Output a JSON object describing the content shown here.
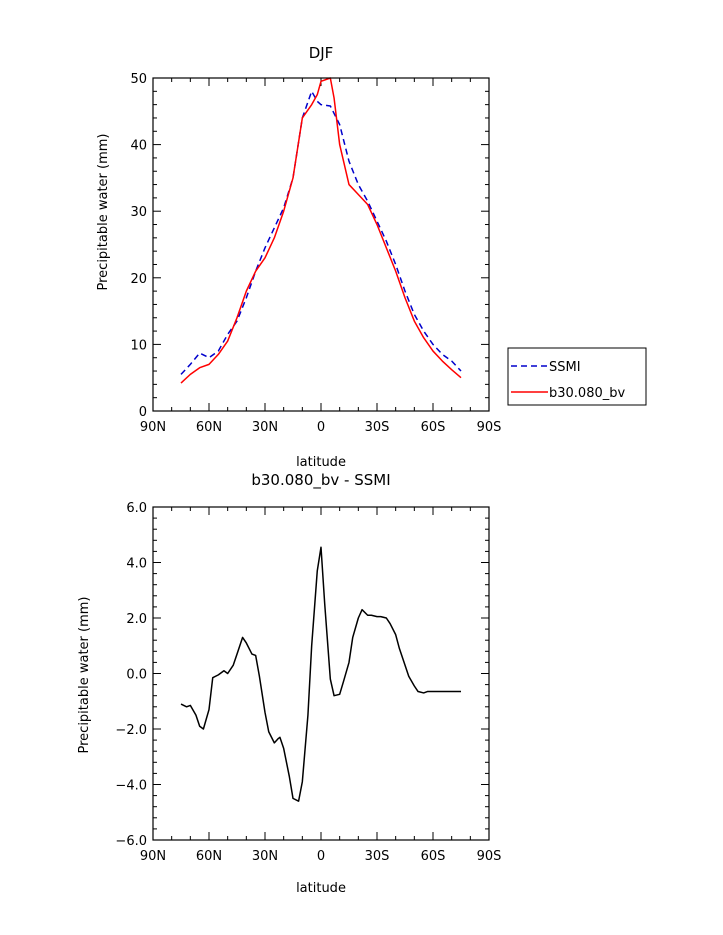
{
  "chart_data": [
    {
      "type": "line",
      "title": "DJF",
      "xlabel": "latitude",
      "ylabel": "Precipitable water (mm)",
      "xlim": [
        90,
        -90
      ],
      "ylim": [
        0,
        50
      ],
      "x_ticks": [
        90,
        60,
        30,
        0,
        -30,
        -60,
        -90
      ],
      "x_tick_labels": [
        "90N",
        "60N",
        "30N",
        "0",
        "30S",
        "60S",
        "90S"
      ],
      "y_ticks": [
        0,
        10,
        20,
        30,
        40,
        50
      ],
      "y_tick_labels": [
        "0",
        "10",
        "20",
        "30",
        "40",
        "50"
      ],
      "legend_position": "right",
      "series": [
        {
          "name": "SSMI",
          "color": "#0000cc",
          "style": "dashed",
          "x": [
            75,
            70,
            65,
            60,
            55,
            50,
            45,
            40,
            35,
            30,
            25,
            20,
            15,
            10,
            5,
            2,
            0,
            -5,
            -10,
            -15,
            -20,
            -25,
            -30,
            -35,
            -40,
            -45,
            -50,
            -55,
            -60,
            -65,
            -70,
            -75
          ],
          "y": [
            5.5,
            7,
            8.7,
            8,
            9,
            11.5,
            13.5,
            17,
            21,
            24.5,
            27.5,
            30.5,
            35,
            44,
            48,
            46.5,
            46,
            45.8,
            43,
            37.5,
            34,
            31.5,
            28.5,
            25.5,
            22,
            18,
            14.5,
            12,
            10,
            8.5,
            7.5,
            6
          ]
        },
        {
          "name": "b30.080_bv",
          "color": "#ff0000",
          "style": "solid",
          "x": [
            75,
            70,
            65,
            60,
            55,
            50,
            45,
            40,
            35,
            30,
            25,
            20,
            15,
            10,
            5,
            2,
            0,
            -5,
            -7,
            -10,
            -15,
            -20,
            -25,
            -30,
            -35,
            -40,
            -45,
            -50,
            -55,
            -60,
            -65,
            -70,
            -75
          ],
          "y": [
            4.2,
            5.5,
            6.5,
            7,
            8.5,
            10.5,
            14,
            18,
            21,
            23,
            26,
            30,
            35,
            44,
            46,
            47.5,
            49.5,
            50,
            47,
            40,
            34,
            32.5,
            31,
            28,
            24.5,
            21,
            17,
            13.5,
            11,
            9,
            7.5,
            6.2,
            5
          ]
        }
      ]
    },
    {
      "type": "line",
      "title": "b30.080_bv  -  SSMI",
      "xlabel": "latitude",
      "ylabel": "Precipitable water (mm)",
      "xlim": [
        90,
        -90
      ],
      "ylim": [
        -6,
        6
      ],
      "x_ticks": [
        90,
        60,
        30,
        0,
        -30,
        -60,
        -90
      ],
      "x_tick_labels": [
        "90N",
        "60N",
        "30N",
        "0",
        "30S",
        "60S",
        "90S"
      ],
      "y_ticks": [
        -6,
        -4,
        -2,
        0,
        2,
        4,
        6
      ],
      "y_tick_labels": [
        "−6.0",
        "−4.0",
        "−2.0",
        "0.0",
        "2.0",
        "4.0",
        "6.0"
      ],
      "series": [
        {
          "color": "#000000",
          "style": "solid",
          "x": [
            75,
            72,
            70,
            67,
            65,
            63,
            60,
            58,
            55,
            52,
            50,
            47,
            45,
            42,
            40,
            37,
            35,
            33,
            30,
            28,
            25,
            23,
            22,
            20,
            17,
            15,
            12,
            10,
            7,
            5,
            2,
            0,
            -2,
            -5,
            -7,
            -10,
            -12,
            -15,
            -17,
            -20,
            -22,
            -25,
            -27,
            -30,
            -32,
            -35,
            -37,
            -40,
            -42,
            -45,
            -47,
            -50,
            -52,
            -55,
            -57,
            -60,
            -62,
            -65,
            -67,
            -70,
            -72,
            -75
          ],
          "y": [
            -1.1,
            -1.2,
            -1.15,
            -1.5,
            -1.9,
            -2.0,
            -1.3,
            -0.15,
            -0.05,
            0.1,
            0.0,
            0.3,
            0.7,
            1.3,
            1.1,
            0.7,
            0.65,
            -0.1,
            -1.4,
            -2.1,
            -2.5,
            -2.35,
            -2.3,
            -2.7,
            -3.7,
            -4.5,
            -4.6,
            -3.9,
            -1.5,
            1.0,
            3.7,
            4.55,
            2.5,
            -0.2,
            -0.8,
            -0.75,
            -0.3,
            0.4,
            1.3,
            2.0,
            2.3,
            2.1,
            2.1,
            2.05,
            2.05,
            2.0,
            1.8,
            1.4,
            0.9,
            0.3,
            -0.1,
            -0.45,
            -0.65,
            -0.7,
            -0.65,
            -0.65,
            -0.65,
            -0.65,
            -0.65,
            -0.65,
            -0.65,
            -0.65
          ]
        }
      ]
    }
  ]
}
